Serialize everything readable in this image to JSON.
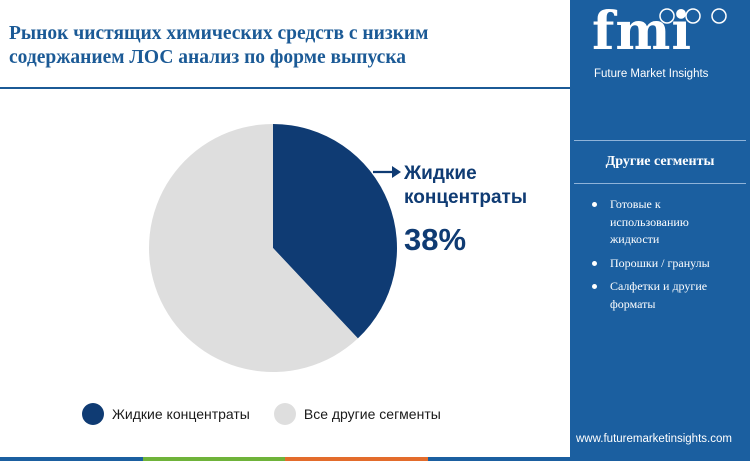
{
  "header": {
    "title_line1": "Рынок чистящих химических средств с низким",
    "title_line2": "содержанием ЛОС анализ по форме выпуска"
  },
  "chart_data": {
    "type": "pie",
    "title": "Рынок чистящих химических средств с низким содержанием ЛОС анализ по форме выпуска",
    "slices": [
      {
        "label": "Жидкие концентраты",
        "value": 38,
        "color": "#0f3b73"
      },
      {
        "label": "Все другие сегменты",
        "value": 62,
        "color": "#dedede"
      }
    ],
    "start_angle": "12 o'clock, clockwise",
    "legend_position": "bottom"
  },
  "callout": {
    "label_line1": "Жидкие",
    "label_line2": "концентраты",
    "value": "38%"
  },
  "legend": {
    "items": [
      {
        "label": "Жидкие концентраты",
        "color": "#0f3b73"
      },
      {
        "label": "Все другие сегменты",
        "color": "#dedede"
      }
    ]
  },
  "brand": {
    "logo_text": "fmi",
    "tagline": "Future Market Insights",
    "url": "www.futuremarketinsights.com",
    "panel_color": "#1b5fa0"
  },
  "side_panel": {
    "title": "Другие сегменты",
    "items": [
      "Готовые к использованию жидкости",
      "Порошки / гранулы",
      "Салфетки и другие форматы"
    ]
  },
  "bottom_bar_colors": [
    "#1b5fa0",
    "#6fb33a",
    "#e36c2c",
    "#1b5fa0"
  ]
}
